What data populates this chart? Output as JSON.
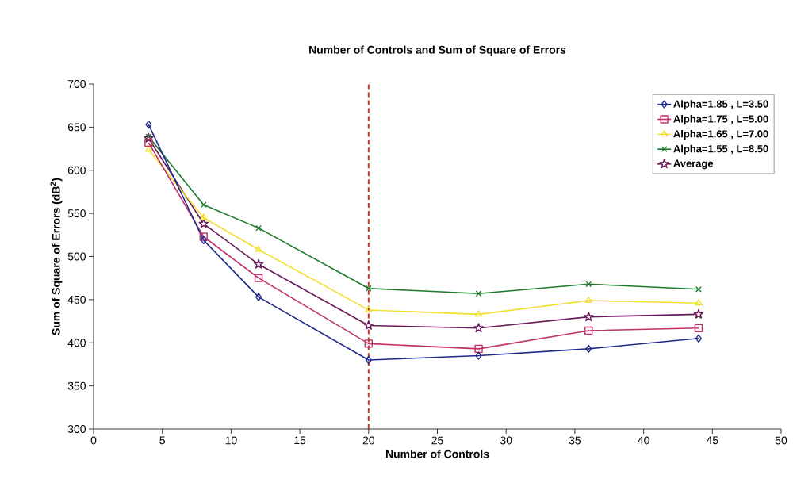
{
  "chart_data": {
    "type": "line",
    "title": "Number of Controls and Sum of Square of Errors",
    "xlabel": "Number of Controls",
    "ylabel": "Sum of Square of Errors (dB$^{2}$)",
    "x": [
      4,
      8,
      12,
      20,
      28,
      36,
      44
    ],
    "series": [
      {
        "name": "Alpha=1.85 , L=3.50",
        "color": "#1f2a8a",
        "marker": "diamond",
        "values": [
          653,
          519,
          453,
          380,
          385,
          393,
          405
        ]
      },
      {
        "name": "Alpha=1.75 , L=5.00",
        "color": "#c0306a",
        "marker": "square",
        "values": [
          632,
          523,
          475,
          399,
          393,
          414,
          417
        ]
      },
      {
        "name": "Alpha=1.65 , L=7.00",
        "color": "#f0e030",
        "marker": "triangle",
        "values": [
          624,
          545,
          508,
          438,
          433,
          449,
          446
        ]
      },
      {
        "name": "Alpha=1.55 , L=8.50",
        "color": "#1a7a2a",
        "marker": "cross",
        "values": [
          639,
          560,
          533,
          463,
          457,
          468,
          462
        ]
      },
      {
        "name": "Average",
        "color": "#6a1a5a",
        "marker": "star",
        "values": [
          637,
          538,
          491,
          420,
          417,
          430,
          433
        ]
      }
    ],
    "xlim": [
      0,
      50
    ],
    "xticks": [
      0,
      5,
      10,
      15,
      20,
      25,
      30,
      35,
      40,
      45,
      50
    ],
    "ylim": [
      300,
      700
    ],
    "yticks": [
      300,
      350,
      400,
      450,
      500,
      550,
      600,
      650,
      700
    ],
    "ref_lines": [
      {
        "axis": "x",
        "value": 20,
        "color": "#c0392b",
        "line_style": "dashed"
      }
    ],
    "grid": false,
    "legend": "top right",
    "line_style": "solid"
  }
}
